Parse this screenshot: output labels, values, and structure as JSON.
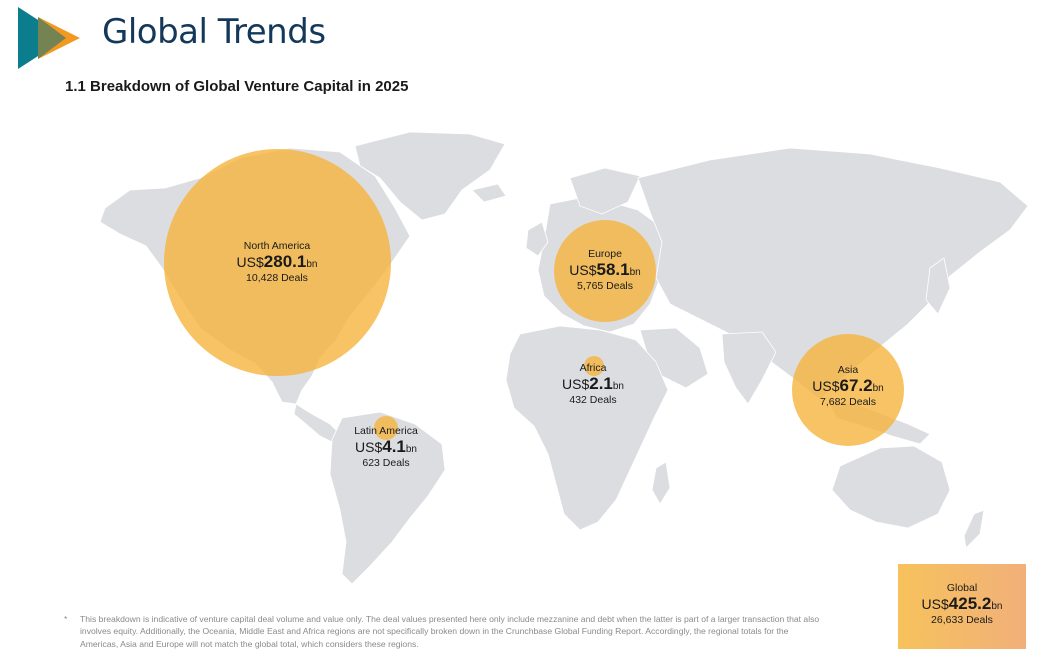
{
  "header": {
    "title": "Global Trends",
    "section_title": "1.1 Breakdown of Global Venture Capital in 2025"
  },
  "colors": {
    "brand_teal": "#0b7d8c",
    "brand_orange": "#f29a1f",
    "title_navy": "#13385a",
    "bubble": "#f6b238",
    "land": "#dcdde1"
  },
  "regions": [
    {
      "key": "north_america",
      "name": "North America",
      "prefix": "US$",
      "amount": "280.1",
      "unit": "bn",
      "deals": "10,428 Deals"
    },
    {
      "key": "europe",
      "name": "Europe",
      "prefix": "US$",
      "amount": "58.1",
      "unit": "bn",
      "deals": "5,765 Deals"
    },
    {
      "key": "africa",
      "name": "Africa",
      "prefix": "US$",
      "amount": "2.1",
      "unit": "bn",
      "deals": "432 Deals"
    },
    {
      "key": "asia",
      "name": "Asia",
      "prefix": "US$",
      "amount": "67.2",
      "unit": "bn",
      "deals": "7,682 Deals"
    },
    {
      "key": "latin_america",
      "name": "Latin America",
      "prefix": "US$",
      "amount": "4.1",
      "unit": "bn",
      "deals": "623 Deals"
    }
  ],
  "global": {
    "name": "Global",
    "prefix": "US$",
    "amount": "425.2",
    "unit": "bn",
    "deals": "26,633 Deals"
  },
  "footnote": {
    "marker": "*",
    "text": "This breakdown is indicative of venture capital deal volume and value only. The deal values presented here only include mezzanine and debt when the latter is part of a larger transaction that also involves equity. Additionally, the Oceania, Middle East and Africa regions are not specifically broken down in the Crunchbase Global Funding Report. Accordingly, the regional totals for the Americas, Asia and Europe will not match the global total, which considers these regions."
  }
}
